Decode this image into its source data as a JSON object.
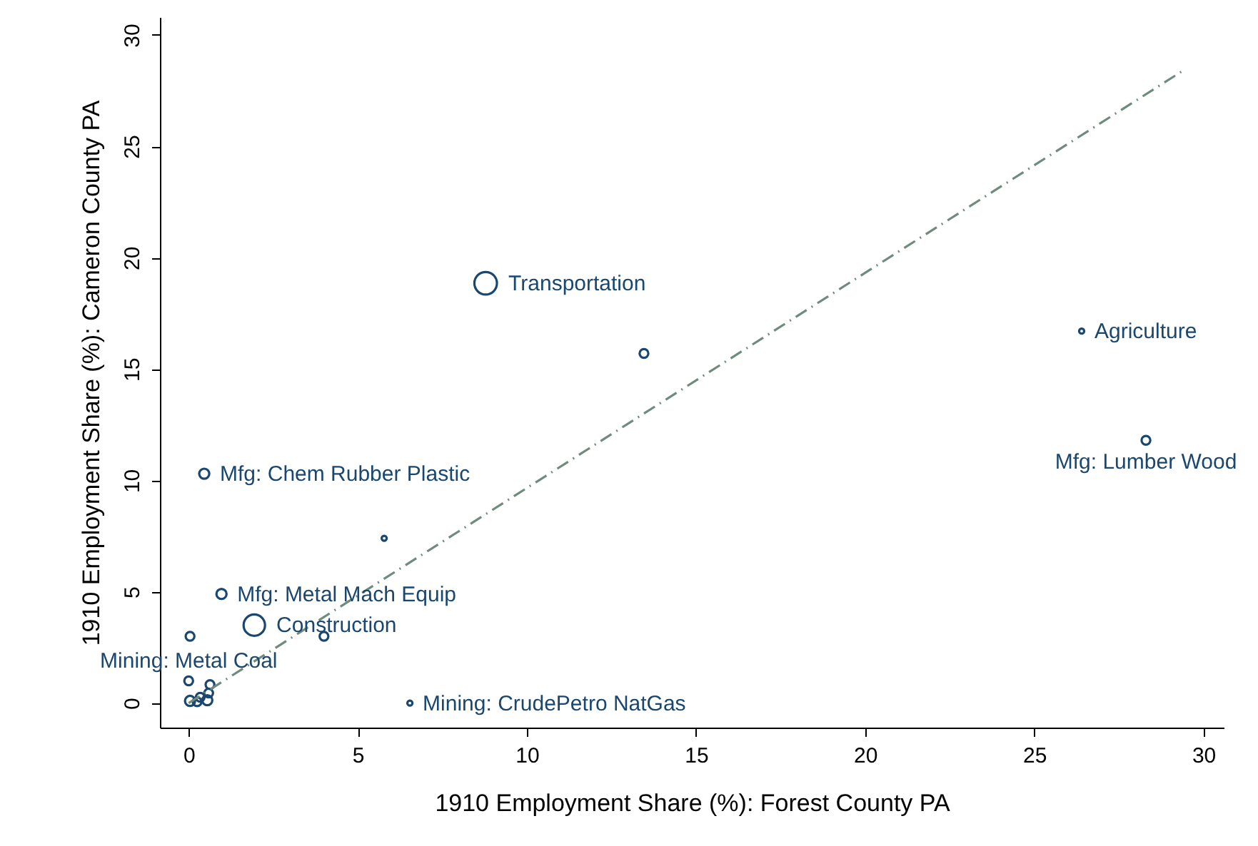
{
  "chart_data": {
    "type": "bubble",
    "xlabel": "1910 Employment Share (%): Forest County PA",
    "ylabel": "1910 Employment Share (%): Cameron County PA",
    "xlim": [
      -0.85,
      30.6
    ],
    "ylim": [
      -1.1,
      30.8
    ],
    "xticks": [
      0,
      5,
      10,
      15,
      20,
      25,
      30
    ],
    "yticks": [
      0,
      5,
      10,
      15,
      20,
      25,
      30
    ],
    "grid": false,
    "series": [
      {
        "color": "#1a476f",
        "marker": "circle",
        "x": [
          8.78,
          13.46,
          26.4,
          28.3,
          0.46,
          5.78,
          0.97,
          1.94,
          4.0,
          0.04,
          0.0,
          6.54,
          0.04,
          0.34,
          0.59,
          0.63,
          0.55,
          0.25
        ],
        "values": [
          18.85,
          15.7,
          16.7,
          11.8,
          10.3,
          7.4,
          4.9,
          3.5,
          3.0,
          3.0,
          1.0,
          0.0,
          0.1,
          0.26,
          0.45,
          0.83,
          0.13,
          0.06
        ],
        "sizes": [
          1,
          0.15,
          0.05,
          0.15,
          0.2,
          0.05,
          0.2,
          0.9,
          0.15,
          0.15,
          0.15,
          0.05,
          0.2,
          0.15,
          0.15,
          0.15,
          0.2,
          0.15
        ]
      },
      {
        "type": "line",
        "color": "#6e8b7d",
        "line_style": "dashed",
        "x": [
          0,
          29.4
        ],
        "values": [
          0,
          28.4
        ]
      }
    ],
    "annotations": [
      {
        "text": "Transportation",
        "x": 8.78,
        "y": 18.85
      },
      {
        "text": "Agriculture",
        "x": 26.4,
        "y": 16.7
      },
      {
        "text": "Mfg: Lumber Wood",
        "x": 28.3,
        "y": 11.8
      },
      {
        "text": "Mfg: Chem Rubber Plastic",
        "x": 0.46,
        "y": 10.3
      },
      {
        "text": "Mfg: Metal Mach Equip",
        "x": 0.97,
        "y": 4.9
      },
      {
        "text": "Construction",
        "x": 1.94,
        "y": 3.5
      },
      {
        "text": "Mining: Metal Coal",
        "x": 0.0,
        "y": 1.0
      },
      {
        "text": "Mining: CrudePetro NatGas",
        "x": 6.54,
        "y": 0.0
      }
    ]
  }
}
